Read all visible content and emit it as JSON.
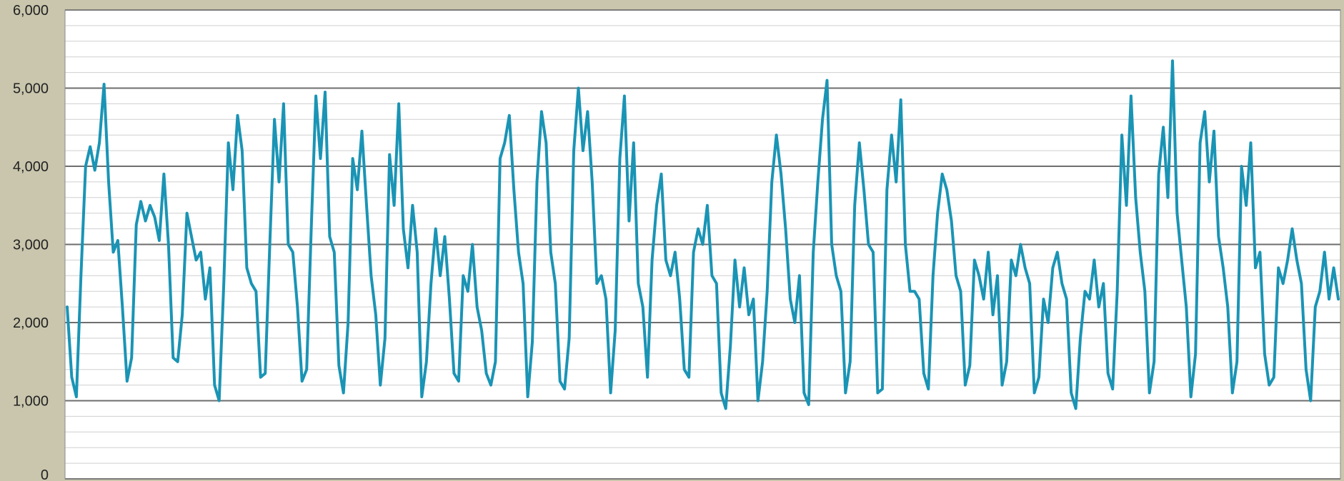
{
  "chart_data": {
    "type": "line",
    "title": "",
    "xlabel": "",
    "ylabel": "",
    "ylim": [
      0,
      6000
    ],
    "y_ticks": [
      {
        "value": 0,
        "label": "0"
      },
      {
        "value": 1000,
        "label": "1,000"
      },
      {
        "value": 2000,
        "label": "2,000"
      },
      {
        "value": 3000,
        "label": "3,000"
      },
      {
        "value": 4000,
        "label": "4,000"
      },
      {
        "value": 5000,
        "label": "5,000"
      },
      {
        "value": 6000,
        "label": "6,000"
      }
    ],
    "minor_step": 200,
    "grid": true,
    "legend": "none",
    "colors": {
      "series": "#1a94b5",
      "plot_background": "#ffffff",
      "page_background": "#c9c6ad",
      "major_grid": "#6e6e6e",
      "minor_grid": "#cfcfcf"
    },
    "series": [
      {
        "values": [
          2200,
          1300,
          1050,
          2600,
          4000,
          4250,
          3950,
          4300,
          5050,
          3800,
          2900,
          3050,
          2200,
          1250,
          1550,
          3250,
          3550,
          3300,
          3500,
          3350,
          3050,
          3900,
          3000,
          1550,
          1500,
          2100,
          3400,
          3100,
          2800,
          2900,
          2300,
          2700,
          1200,
          1000,
          2500,
          4300,
          3700,
          4650,
          4200,
          2700,
          2500,
          2400,
          1300,
          1350,
          3000,
          4600,
          3800,
          4800,
          3000,
          2900,
          2200,
          1250,
          1400,
          3200,
          4900,
          4100,
          4950,
          3100,
          2900,
          1450,
          1100,
          2000,
          4100,
          3700,
          4450,
          3500,
          2600,
          2100,
          1200,
          1800,
          4150,
          3500,
          4800,
          3200,
          2700,
          3500,
          2900,
          1050,
          1500,
          2500,
          3200,
          2600,
          3100,
          2300,
          1350,
          1250,
          2600,
          2400,
          3000,
          2200,
          1900,
          1350,
          1200,
          1500,
          4100,
          4300,
          4650,
          3700,
          2900,
          2500,
          1050,
          1750,
          3800,
          4700,
          4300,
          2900,
          2500,
          1250,
          1150,
          1800,
          4200,
          5000,
          4200,
          4700,
          3800,
          2500,
          2600,
          2300,
          1100,
          1900,
          4100,
          4900,
          3300,
          4300,
          2500,
          2200,
          1300,
          2800,
          3500,
          3900,
          2800,
          2600,
          2900,
          2300,
          1400,
          1300,
          2900,
          3200,
          3000,
          3500,
          2600,
          2500,
          1100,
          900,
          1700,
          2800,
          2200,
          2700,
          2100,
          2300,
          1000,
          1500,
          2400,
          3800,
          4400,
          3900,
          3200,
          2300,
          2000,
          2600,
          1100,
          950,
          2900,
          3800,
          4600,
          5100,
          3000,
          2600,
          2400,
          1100,
          1500,
          3500,
          4300,
          3700,
          3000,
          2900,
          1100,
          1150,
          3700,
          4400,
          3800,
          4850,
          3000,
          2400,
          2400,
          2300,
          1350,
          1150,
          2600,
          3400,
          3900,
          3700,
          3300,
          2600,
          2400,
          1200,
          1450,
          2800,
          2600,
          2300,
          2900,
          2100,
          2600,
          1200,
          1500,
          2800,
          2600,
          3000,
          2700,
          2500,
          1100,
          1300,
          2300,
          2000,
          2700,
          2900,
          2500,
          2300,
          1100,
          900,
          1800,
          2400,
          2300,
          2800,
          2200,
          2500,
          1350,
          1150,
          2400,
          4400,
          3500,
          4900,
          3600,
          2900,
          2400,
          1100,
          1500,
          3900,
          4500,
          3600,
          5350,
          3400,
          2800,
          2200,
          1050,
          1600,
          4300,
          4700,
          3800,
          4450,
          3100,
          2700,
          2200,
          1100,
          1500,
          4000,
          3500,
          4300,
          2700,
          2900,
          1600,
          1200,
          1300,
          2700,
          2500,
          2800,
          3200,
          2800,
          2500,
          1400,
          1000,
          2200,
          2400,
          2900,
          2300,
          2700,
          2300
        ]
      }
    ]
  }
}
